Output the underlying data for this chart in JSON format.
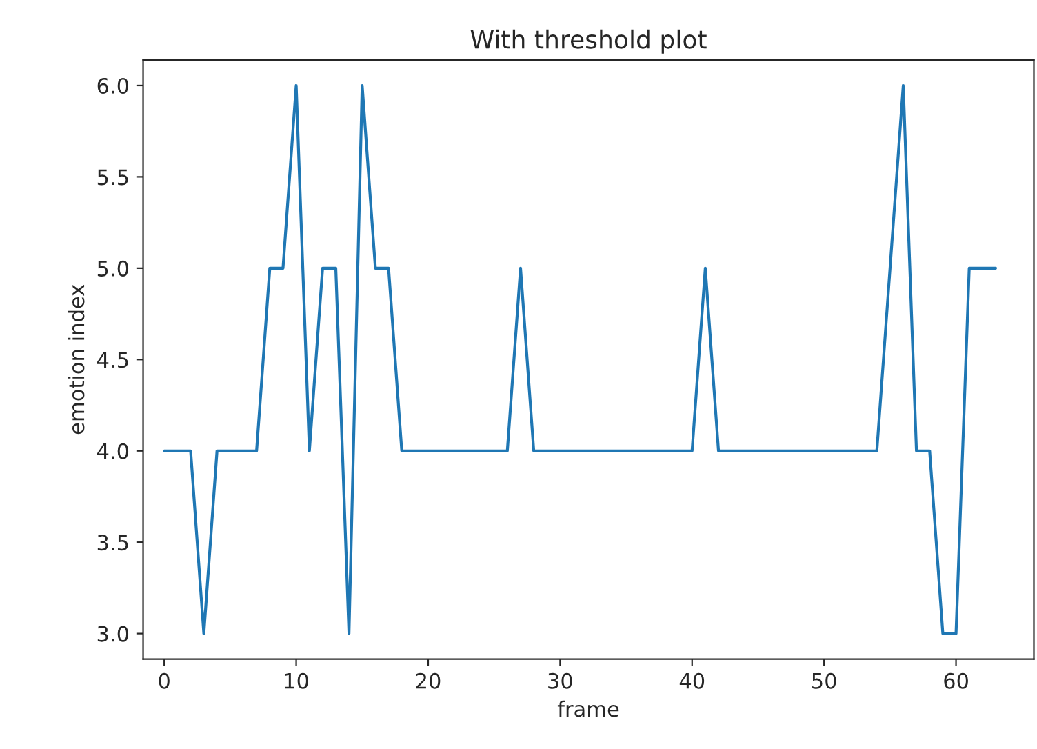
{
  "chart_data": {
    "type": "line",
    "title": "With threshold plot",
    "xlabel": "frame",
    "ylabel": "emotion index",
    "x": [
      0,
      1,
      2,
      3,
      4,
      5,
      6,
      7,
      8,
      9,
      10,
      11,
      12,
      13,
      14,
      15,
      16,
      17,
      18,
      19,
      20,
      21,
      22,
      23,
      24,
      25,
      26,
      27,
      28,
      29,
      30,
      31,
      32,
      33,
      34,
      35,
      36,
      37,
      38,
      39,
      40,
      41,
      42,
      43,
      44,
      45,
      46,
      47,
      48,
      49,
      50,
      51,
      52,
      53,
      54,
      55,
      56,
      57,
      58,
      59,
      60,
      61,
      62,
      63
    ],
    "series": [
      {
        "color": "#1f77b4",
        "values": [
          4,
          4,
          4,
          3,
          4,
          4,
          4,
          4,
          5,
          5,
          6,
          4,
          5,
          5,
          3,
          6,
          5,
          5,
          4,
          4,
          4,
          4,
          4,
          4,
          4,
          4,
          4,
          5,
          4,
          4,
          4,
          4,
          4,
          4,
          4,
          4,
          4,
          4,
          4,
          4,
          4,
          5,
          4,
          4,
          4,
          4,
          4,
          4,
          4,
          4,
          4,
          4,
          4,
          4,
          4,
          5,
          6,
          4,
          4,
          3,
          3,
          5,
          5,
          5
        ]
      }
    ],
    "xlim": [
      -1.6,
      65.9
    ],
    "ylim": [
      2.86,
      6.14
    ],
    "xticks": [
      0,
      10,
      20,
      30,
      40,
      50,
      60
    ],
    "yticks": [
      {
        "value": 3,
        "label": "3.0"
      },
      {
        "value": 3.5,
        "label": "3.5"
      },
      {
        "value": 4,
        "label": "4.0"
      },
      {
        "value": 4.5,
        "label": "4.5"
      },
      {
        "value": 5,
        "label": "5.0"
      },
      {
        "value": 5.5,
        "label": "5.5"
      },
      {
        "value": 6,
        "label": "6.0"
      }
    ],
    "grid": false,
    "legend": false
  }
}
